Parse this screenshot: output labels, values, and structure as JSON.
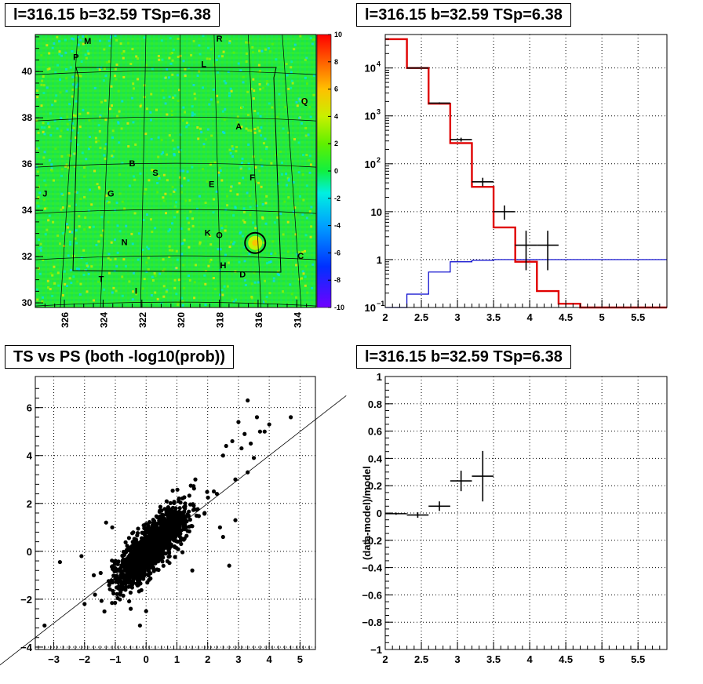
{
  "panels": {
    "map_title": "l=316.15 b=32.59 TSp=6.38",
    "spectrum_title": "l=316.15 b=32.59 TSp=6.38",
    "scatter_title": "TS vs PS (both -log10(prob))",
    "residual_title": "l=316.15 b=32.59 TSp=6.38"
  },
  "chart_data": [
    {
      "type": "heatmap",
      "x_ticks": [
        "326",
        "324",
        "322",
        "320",
        "318",
        "316",
        "314"
      ],
      "y_ticks": [
        "30",
        "32",
        "34",
        "36",
        "38",
        "40"
      ],
      "xlim": [
        327.5,
        313.0
      ],
      "ylim": [
        29.8,
        41.6
      ],
      "colorbar_ticks": [
        "-10",
        "-8",
        "-6",
        "-4",
        "-2",
        "0",
        "2",
        "4",
        "6",
        "8",
        "10"
      ],
      "zlim": [
        -10,
        10
      ],
      "source_labels": [
        {
          "label": "P",
          "l": 325.4,
          "b": 40.5
        },
        {
          "label": "M",
          "l": 324.8,
          "b": 41.2
        },
        {
          "label": "R",
          "l": 318.0,
          "b": 41.3
        },
        {
          "label": "L",
          "l": 318.8,
          "b": 40.2
        },
        {
          "label": "Q",
          "l": 313.6,
          "b": 38.6
        },
        {
          "label": "A",
          "l": 317.0,
          "b": 37.5
        },
        {
          "label": "B",
          "l": 322.5,
          "b": 35.9
        },
        {
          "label": "S",
          "l": 321.3,
          "b": 35.5
        },
        {
          "label": "E",
          "l": 318.4,
          "b": 35.0
        },
        {
          "label": "F",
          "l": 316.3,
          "b": 35.3
        },
        {
          "label": "J",
          "l": 327.0,
          "b": 34.6
        },
        {
          "label": "G",
          "l": 323.6,
          "b": 34.6
        },
        {
          "label": "K",
          "l": 318.6,
          "b": 32.9
        },
        {
          "label": "O",
          "l": 318.0,
          "b": 32.8
        },
        {
          "label": "N",
          "l": 322.9,
          "b": 32.5
        },
        {
          "label": "H",
          "l": 317.8,
          "b": 31.5
        },
        {
          "label": "C",
          "l": 313.8,
          "b": 31.9
        },
        {
          "label": "D",
          "l": 316.8,
          "b": 31.1
        },
        {
          "label": "T",
          "l": 324.1,
          "b": 30.9
        },
        {
          "label": "I",
          "l": 322.3,
          "b": 30.4
        }
      ],
      "marker": {
        "l": 316.15,
        "b": 32.59
      }
    },
    {
      "type": "line",
      "log_y": true,
      "xlim": [
        2,
        5.9
      ],
      "ylim": [
        0.1,
        50000
      ],
      "x_ticks": [
        "2",
        "2.5",
        "3",
        "3.5",
        "4",
        "4.5",
        "5",
        "5.5"
      ],
      "y_ticks": [
        "10^-1",
        "1",
        "10",
        "10^2",
        "10^3",
        "10^4"
      ],
      "grid": true,
      "model_steps": {
        "color": "#e00000",
        "edges": [
          2.0,
          2.3,
          2.6,
          2.9,
          3.2,
          3.5,
          3.8,
          4.1,
          4.4,
          4.7,
          5.0,
          5.3,
          5.6,
          5.9
        ],
        "values": [
          40000,
          10000,
          1800,
          270,
          33,
          4.7,
          0.9,
          0.22,
          0.12,
          0.1,
          0.1,
          0.1,
          0.1
        ]
      },
      "background_steps": {
        "color": "#0000cc",
        "edges": [
          2.0,
          2.3,
          2.6,
          2.9,
          3.2,
          3.5,
          3.8,
          4.1,
          4.4,
          4.7,
          5.0,
          5.3,
          5.6,
          5.9
        ],
        "values": [
          0.05,
          0.19,
          0.55,
          0.9,
          0.97,
          1.0,
          1.0,
          1.0,
          1.0,
          1.0,
          1.0,
          1.0,
          1.0
        ]
      },
      "data_points": [
        {
          "x": 2.45,
          "y": 10000,
          "xerr": 0.15,
          "ylo": 9700,
          "yhi": 10300
        },
        {
          "x": 2.75,
          "y": 1850,
          "xerr": 0.15,
          "ylo": 1780,
          "yhi": 1920
        },
        {
          "x": 3.05,
          "y": 320,
          "xerr": 0.15,
          "ylo": 290,
          "yhi": 350
        },
        {
          "x": 3.35,
          "y": 42,
          "xerr": 0.15,
          "ylo": 34,
          "yhi": 51
        },
        {
          "x": 3.65,
          "y": 10,
          "xerr": 0.15,
          "ylo": 6.8,
          "yhi": 13.5
        },
        {
          "x": 3.95,
          "y": 2,
          "xerr": 0.15,
          "ylo": 0.6,
          "yhi": 4.0
        },
        {
          "x": 4.25,
          "y": 2,
          "xerr": 0.15,
          "ylo": 0.6,
          "yhi": 4.0
        }
      ]
    },
    {
      "type": "scatter",
      "xlim": [
        -3.6,
        5.5
      ],
      "ylim": [
        -4.1,
        7.3
      ],
      "x_ticks": [
        "-3",
        "-2",
        "-1",
        "0",
        "1",
        "2",
        "3",
        "4",
        "5"
      ],
      "y_ticks": [
        "-4",
        "-2",
        "0",
        "2",
        "4",
        "6"
      ],
      "grid": true,
      "reference_line": {
        "slope": 1,
        "intercept": 0
      },
      "dense_cloud_center": [
        0.2,
        0.2
      ],
      "outliers": [
        [
          -3.3,
          -3.1
        ],
        [
          -2.8,
          -0.45
        ],
        [
          -2.0,
          -2.2
        ],
        [
          -1.7,
          -1.0
        ],
        [
          -1.3,
          1.2
        ],
        [
          -1.1,
          1.0
        ],
        [
          -0.2,
          -3.1
        ],
        [
          -0.5,
          -2.4
        ],
        [
          0.0,
          -2.5
        ],
        [
          2.5,
          4.0
        ],
        [
          2.6,
          4.4
        ],
        [
          2.8,
          4.6
        ],
        [
          2.9,
          3.0
        ],
        [
          3.0,
          5.4
        ],
        [
          3.1,
          4.3
        ],
        [
          3.2,
          4.9
        ],
        [
          3.3,
          6.3
        ],
        [
          3.4,
          4.5
        ],
        [
          3.5,
          3.9
        ],
        [
          3.6,
          5.6
        ],
        [
          3.7,
          5.0
        ],
        [
          3.85,
          5.0
        ],
        [
          4.0,
          5.3
        ],
        [
          4.7,
          5.6
        ],
        [
          2.7,
          -0.6
        ],
        [
          2.3,
          2.4
        ],
        [
          2.2,
          2.5
        ],
        [
          1.6,
          3.0
        ],
        [
          1.9,
          1.6
        ],
        [
          2.9,
          1.3
        ],
        [
          2.5,
          0.6
        ],
        [
          1.5,
          -0.8
        ],
        [
          3.3,
          3.3
        ],
        [
          2.4,
          1.0
        ],
        [
          -2.1,
          -0.2
        ]
      ]
    },
    {
      "type": "scatter",
      "xlim": [
        2,
        5.9
      ],
      "ylim": [
        -1,
        1
      ],
      "ylabel": "(data-model)/model",
      "x_ticks": [
        "2",
        "2.5",
        "3",
        "3.5",
        "4",
        "4.5",
        "5",
        "5.5"
      ],
      "y_ticks": [
        "-1",
        "-0.8",
        "-0.6",
        "-0.4",
        "-0.2",
        "0",
        "0.2",
        "0.4",
        "0.6",
        "0.8",
        "1"
      ],
      "grid": true,
      "data_points": [
        {
          "x": 2.15,
          "y": -0.005,
          "xerr": 0.15,
          "yerr": 0.008
        },
        {
          "x": 2.45,
          "y": -0.015,
          "xerr": 0.15,
          "yerr": 0.02
        },
        {
          "x": 2.75,
          "y": 0.05,
          "xerr": 0.15,
          "yerr": 0.035
        },
        {
          "x": 3.05,
          "y": 0.235,
          "xerr": 0.15,
          "yerr": 0.075
        },
        {
          "x": 3.35,
          "y": 0.27,
          "xerr": 0.15,
          "yerr": 0.185
        }
      ]
    }
  ]
}
